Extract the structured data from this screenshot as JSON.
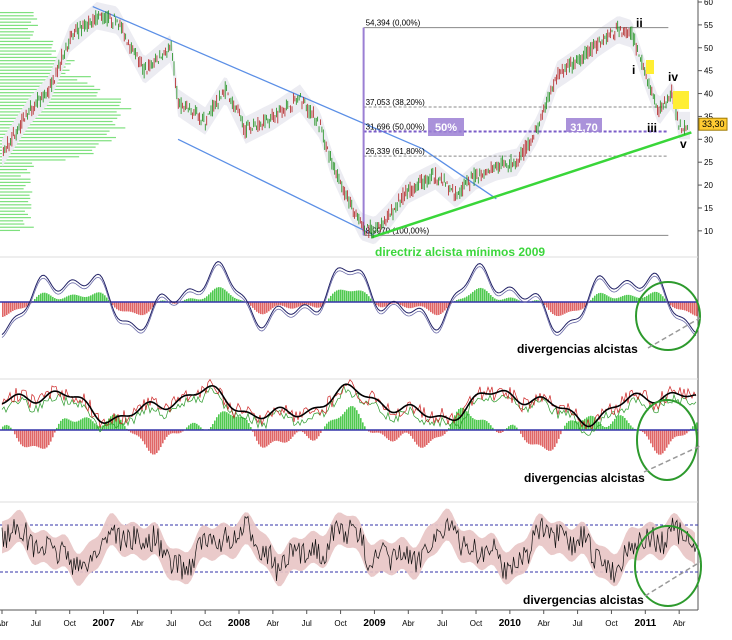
{
  "chart_data": [
    {
      "type": "line",
      "panel": "price",
      "y_axis": {
        "ticks": [
          10,
          15,
          20,
          25,
          30,
          35,
          40,
          45,
          50,
          55,
          60
        ],
        "ylim": [
          8,
          60
        ],
        "side": "right"
      },
      "last_price_label": "33,30",
      "fib_levels": [
        {
          "label": "54,394 (0,00%)",
          "value": 54.394
        },
        {
          "label": "37,053 (38,20%)",
          "value": 37.053
        },
        {
          "label": "31,696 (50,00%)",
          "value": 31.696
        },
        {
          "label": "26,339 (61,80%)",
          "value": 26.339
        },
        {
          "label": "8,9970 (100,00%)",
          "value": 8.997
        }
      ],
      "boxes": [
        {
          "label": "50%",
          "color": "#9b7fd4"
        },
        {
          "label": "31,70",
          "color": "#9b7fd4"
        }
      ],
      "wave_labels": [
        "ii",
        "i",
        "iv",
        "iii",
        "v"
      ],
      "annotations": [
        "directriz alcista mínimos 2009"
      ],
      "price_series": [
        {
          "t": 2006.25,
          "v": 27
        },
        {
          "t": 2006.45,
          "v": 36
        },
        {
          "t": 2006.6,
          "v": 41
        },
        {
          "t": 2006.75,
          "v": 52
        },
        {
          "t": 2006.95,
          "v": 57
        },
        {
          "t": 2007.1,
          "v": 56
        },
        {
          "t": 2007.3,
          "v": 45
        },
        {
          "t": 2007.5,
          "v": 50
        },
        {
          "t": 2007.55,
          "v": 38
        },
        {
          "t": 2007.75,
          "v": 34
        },
        {
          "t": 2007.9,
          "v": 41
        },
        {
          "t": 2008.05,
          "v": 32
        },
        {
          "t": 2008.25,
          "v": 35
        },
        {
          "t": 2008.45,
          "v": 39
        },
        {
          "t": 2008.6,
          "v": 33
        },
        {
          "t": 2008.68,
          "v": 25
        },
        {
          "t": 2008.8,
          "v": 17
        },
        {
          "t": 2008.9,
          "v": 11
        },
        {
          "t": 2009.0,
          "v": 10
        },
        {
          "t": 2009.1,
          "v": 13
        },
        {
          "t": 2009.25,
          "v": 19
        },
        {
          "t": 2009.45,
          "v": 22
        },
        {
          "t": 2009.6,
          "v": 18
        },
        {
          "t": 2009.75,
          "v": 22
        },
        {
          "t": 2009.9,
          "v": 24
        },
        {
          "t": 2010.05,
          "v": 25
        },
        {
          "t": 2010.2,
          "v": 32
        },
        {
          "t": 2010.35,
          "v": 44
        },
        {
          "t": 2010.5,
          "v": 47
        },
        {
          "t": 2010.65,
          "v": 51
        },
        {
          "t": 2010.8,
          "v": 54
        },
        {
          "t": 2010.9,
          "v": 53
        },
        {
          "t": 2011.0,
          "v": 44
        },
        {
          "t": 2011.1,
          "v": 36
        },
        {
          "t": 2011.2,
          "v": 40
        },
        {
          "t": 2011.25,
          "v": 33
        }
      ]
    },
    {
      "type": "line",
      "panel": "oscillator-1",
      "annotation": "divergencias alcistas"
    },
    {
      "type": "line",
      "panel": "oscillator-2",
      "annotation": "divergencias alcistas"
    },
    {
      "type": "line",
      "panel": "oscillator-3",
      "annotation": "divergencias alcistas"
    }
  ],
  "x_axis": {
    "labels": [
      {
        "text": "Abr",
        "bold": false
      },
      {
        "text": "Jul",
        "bold": false
      },
      {
        "text": "Oct",
        "bold": false
      },
      {
        "text": "2007",
        "bold": true
      },
      {
        "text": "Abr",
        "bold": false
      },
      {
        "text": "Jul",
        "bold": false
      },
      {
        "text": "Oct",
        "bold": false
      },
      {
        "text": "2008",
        "bold": true
      },
      {
        "text": "Abr",
        "bold": false
      },
      {
        "text": "Jul",
        "bold": false
      },
      {
        "text": "Oct",
        "bold": false
      },
      {
        "text": "2009",
        "bold": true
      },
      {
        "text": "Abr",
        "bold": false
      },
      {
        "text": "Jul",
        "bold": false
      },
      {
        "text": "Oct",
        "bold": false
      },
      {
        "text": "2010",
        "bold": true
      },
      {
        "text": "Abr",
        "bold": false
      },
      {
        "text": "Jul",
        "bold": false
      },
      {
        "text": "Oct",
        "bold": false
      },
      {
        "text": "2011",
        "bold": true
      },
      {
        "text": "Abr",
        "bold": false
      }
    ]
  }
}
